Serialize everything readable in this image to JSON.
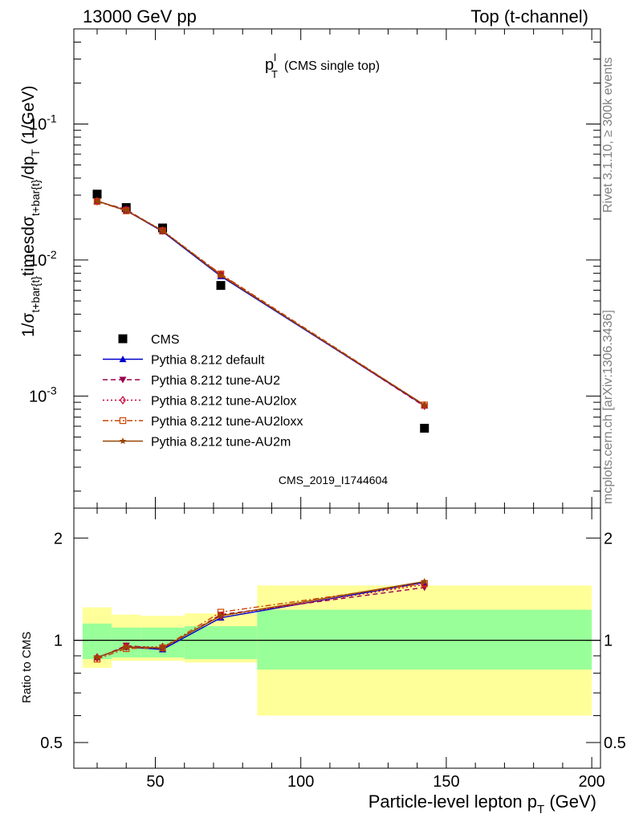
{
  "header": {
    "left": "13000 GeV pp",
    "right": "Top (t-channel)"
  },
  "side": {
    "rivet": "Rivet 3.1.10, ≥ 300k events",
    "mcplots": "mcplots.cern.ch [arXiv:1306.3436]"
  },
  "chart_data": [
    {
      "type": "line",
      "panel": "main",
      "title_main": "p",
      "title_sup": "l",
      "title_sub": "T",
      "title_suffix": "(CMS single top)",
      "watermark": "CMS_2019_I1744604",
      "ylabel": "1/σ_{t+bar{t}}timesdσ_{t+bar{t}}/dp_{T}  (1/GeV)",
      "yscale": "log",
      "xlim": [
        22,
        203
      ],
      "ylim": [
        0.00015,
        0.5
      ],
      "x": [
        30,
        40,
        52.5,
        72.5,
        142.5
      ],
      "y_tick_labels": [
        "10^{-1}",
        "10^{-2}",
        "10^{-3}"
      ],
      "legend_position": "middle-left",
      "series": [
        {
          "name": "CMS",
          "style": "data",
          "color": "#000000",
          "marker": "square",
          "values": [
            0.0305,
            0.0243,
            0.0172,
            0.0065,
            0.00058
          ]
        },
        {
          "name": "Pythia 8.212 default",
          "style": "solid",
          "color": "#0000cc",
          "marker": "triangle-up",
          "values": [
            0.0272,
            0.0231,
            0.0162,
            0.0076,
            0.00085
          ]
        },
        {
          "name": "Pythia 8.212 tune-AU2",
          "style": "dashed",
          "color": "#99004d",
          "marker": "triangle-down",
          "values": [
            0.027,
            0.0235,
            0.0163,
            0.0078,
            0.00084
          ]
        },
        {
          "name": "Pythia 8.212 tune-AU2lox",
          "style": "dotted",
          "color": "#cc0033",
          "marker": "diamond-open",
          "values": [
            0.0271,
            0.0233,
            0.0165,
            0.0078,
            0.00085
          ]
        },
        {
          "name": "Pythia 8.212 tune-AU2loxx",
          "style": "dashdot",
          "color": "#cc4400",
          "marker": "square-open",
          "values": [
            0.0269,
            0.023,
            0.0164,
            0.0079,
            0.00086
          ]
        },
        {
          "name": "Pythia 8.212 tune-AU2m",
          "style": "solid",
          "color": "#994400",
          "marker": "star",
          "values": [
            0.0271,
            0.0232,
            0.0164,
            0.0077,
            0.00086
          ]
        }
      ]
    },
    {
      "type": "line",
      "panel": "ratio",
      "ylabel": "Ratio to CMS",
      "xlabel": "Particle-level lepton p_{T} (GeV)",
      "yscale": "log",
      "xlim": [
        22,
        203
      ],
      "ylim": [
        0.42,
        2.45
      ],
      "x_ticks": [
        50,
        100,
        150,
        200
      ],
      "y_ticks": [
        0.5,
        1,
        2
      ],
      "bins": [
        [
          25,
          35
        ],
        [
          35,
          45
        ],
        [
          45,
          60
        ],
        [
          60,
          85
        ],
        [
          85,
          200
        ]
      ],
      "band_inner": [
        [
          0.88,
          1.12
        ],
        [
          0.89,
          1.09
        ],
        [
          0.89,
          1.09
        ],
        [
          0.88,
          1.1
        ],
        [
          0.82,
          1.23
        ]
      ],
      "band_outer": [
        [
          0.83,
          1.25
        ],
        [
          0.87,
          1.19
        ],
        [
          0.87,
          1.18
        ],
        [
          0.86,
          1.2
        ],
        [
          0.6,
          1.45
        ]
      ],
      "x": [
        30,
        40,
        52.5,
        72.5,
        142.5
      ],
      "series": [
        {
          "name": "Pythia 8.212 default",
          "values": [
            0.89,
            0.955,
            0.94,
            1.165,
            1.48
          ]
        },
        {
          "name": "Pythia 8.212 tune-AU2",
          "values": [
            0.885,
            0.965,
            0.945,
            1.19,
            1.43
          ]
        },
        {
          "name": "Pythia 8.212 tune-AU2lox",
          "values": [
            0.89,
            0.958,
            0.955,
            1.18,
            1.46
          ]
        },
        {
          "name": "Pythia 8.212 tune-AU2loxx",
          "values": [
            0.88,
            0.945,
            0.95,
            1.21,
            1.47
          ]
        },
        {
          "name": "Pythia 8.212 tune-AU2m",
          "values": [
            0.89,
            0.955,
            0.95,
            1.18,
            1.49
          ]
        }
      ]
    }
  ]
}
